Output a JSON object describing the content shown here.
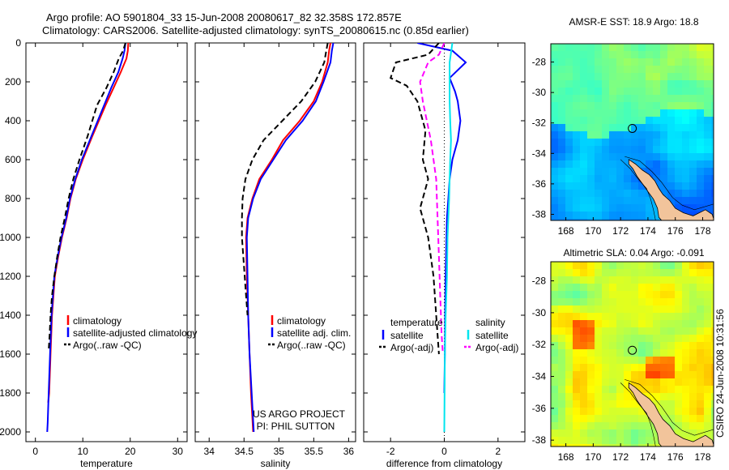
{
  "header": {
    "line1": "Argo profile: AO 5901804_33 15-Jun-2008 20080617_82 32.358S 172.857E",
    "line2": "Climatology: CARS2006. Satellite-adjusted climatology: synTS_20080615.nc (0.85d earlier)"
  },
  "side_text": "CSIRO 24-Jun-2008 10:31:56",
  "colors": {
    "climatology": "#ff0000",
    "satellite": "#0000ff",
    "argo": "#000000",
    "sat_diff_salinity": "#00e5ee",
    "argo_diff_salinity": "#ff00ff",
    "land": "#f2c49b",
    "marker": "#000000"
  },
  "chart_data": [
    {
      "type": "line",
      "panel": "temperature",
      "xlabel": "temperature",
      "ylabel": "",
      "xlim": [
        -2,
        32
      ],
      "ylim": [
        2050,
        0
      ],
      "xticks": [
        0,
        10,
        20,
        30
      ],
      "yticks": [
        0,
        200,
        400,
        600,
        800,
        1000,
        1200,
        1400,
        1600,
        1800,
        2000
      ],
      "legend": [
        "climatology",
        "satellite-adjusted climatology",
        "Argo(..raw -QC)"
      ],
      "legend_placement": "lower-right",
      "series": [
        {
          "name": "climatology",
          "color_key": "climatology",
          "style": "solid",
          "x": [
            19.6,
            19.5,
            19.2,
            18.0,
            16.5,
            14.8,
            12.0,
            10.0,
            8.5,
            7.4,
            6.6,
            5.6,
            4.8,
            4.1,
            3.5,
            3.2,
            2.9,
            2.7
          ],
          "y": [
            0,
            40,
            80,
            150,
            230,
            320,
            480,
            600,
            700,
            800,
            900,
            1000,
            1100,
            1200,
            1400,
            1600,
            1800,
            1850
          ]
        },
        {
          "name": "satellite-adjusted climatology",
          "color_key": "satellite",
          "style": "solid",
          "x": [
            19.0,
            18.8,
            18.4,
            17.5,
            16.0,
            14.5,
            11.8,
            9.8,
            8.4,
            7.3,
            6.5,
            5.5,
            4.7,
            4.0,
            3.4,
            3.1,
            2.8,
            2.6,
            2.5
          ],
          "y": [
            0,
            40,
            80,
            150,
            230,
            320,
            480,
            600,
            700,
            800,
            900,
            1000,
            1100,
            1200,
            1400,
            1600,
            1800,
            1950,
            2000
          ]
        },
        {
          "name": "Argo(..raw -QC)",
          "color_key": "argo",
          "style": "dashed",
          "x": [
            19.0,
            18.5,
            17.6,
            16.5,
            15.0,
            13.0,
            11.0,
            9.3,
            8.0,
            7.0,
            6.2,
            5.3,
            4.6,
            4.0,
            3.5,
            3.2,
            3.0,
            2.8
          ],
          "y": [
            0,
            40,
            80,
            150,
            230,
            320,
            480,
            600,
            700,
            800,
            900,
            1000,
            1100,
            1200,
            1300,
            1400,
            1500,
            1580
          ]
        }
      ]
    },
    {
      "type": "line",
      "panel": "salinity",
      "xlabel": "salinity",
      "ylabel": "",
      "xlim": [
        33.8,
        36.1
      ],
      "ylim": [
        2050,
        0
      ],
      "xticks": [
        34,
        34.5,
        35,
        35.5,
        36
      ],
      "legend": [
        "climatology",
        "satellite adj. clim.",
        "Argo(..raw -QC)"
      ],
      "legend_placement": "lower-right",
      "annotation": [
        "US ARGO PROJECT",
        "PI: PHIL SUTTON"
      ],
      "series": [
        {
          "name": "climatology",
          "color_key": "climatology",
          "style": "solid",
          "x": [
            35.74,
            35.72,
            35.7,
            35.62,
            35.5,
            35.3,
            35.06,
            34.9,
            34.72,
            34.62,
            34.55,
            34.53,
            34.54,
            34.56,
            34.58,
            34.6,
            34.63
          ],
          "y": [
            0,
            40,
            100,
            200,
            300,
            400,
            500,
            600,
            700,
            800,
            900,
            1000,
            1200,
            1400,
            1600,
            1800,
            2000
          ]
        },
        {
          "name": "satellite adj. clim.",
          "color_key": "satellite",
          "style": "solid",
          "x": [
            35.78,
            35.76,
            35.74,
            35.64,
            35.53,
            35.34,
            35.1,
            34.92,
            34.74,
            34.63,
            34.56,
            34.54,
            34.55,
            34.56,
            34.58,
            34.61,
            34.64
          ],
          "y": [
            0,
            40,
            100,
            200,
            300,
            400,
            500,
            600,
            700,
            800,
            900,
            1000,
            1200,
            1400,
            1600,
            1800,
            2000
          ]
        },
        {
          "name": "Argo(..raw -QC)",
          "color_key": "argo",
          "style": "dashed",
          "x": [
            35.7,
            35.68,
            35.65,
            35.52,
            35.32,
            35.05,
            34.78,
            34.62,
            34.52,
            34.48,
            34.47,
            34.47,
            34.49,
            34.51,
            34.53,
            34.55
          ],
          "y": [
            0,
            40,
            100,
            200,
            300,
            400,
            500,
            600,
            700,
            800,
            900,
            1000,
            1100,
            1200,
            1300,
            1400
          ]
        }
      ]
    },
    {
      "type": "line",
      "panel": "difference",
      "xlabel": "difference from climatology",
      "ylabel": "",
      "xlim": [
        -3,
        3
      ],
      "ylim": [
        2050,
        0
      ],
      "xticks": [
        -2,
        0,
        2
      ],
      "legend_groups": [
        {
          "title": "temperature",
          "items": [
            "satellite",
            "Argo(-adj)"
          ]
        },
        {
          "title": "salinity",
          "items": [
            "satellite",
            "Argo(-adj)"
          ]
        }
      ],
      "legend_placement": "lower-center",
      "series": [
        {
          "name": "temperature satellite",
          "color_key": "satellite",
          "style": "solid",
          "x": [
            -1.0,
            0.3,
            0.8,
            0.2,
            0.4,
            0.5,
            0.6,
            0.5,
            0.3,
            0.2,
            0.15,
            0.1,
            0.08,
            0.05,
            0.03,
            0.02,
            0.0
          ],
          "y": [
            0,
            40,
            100,
            180,
            250,
            300,
            400,
            500,
            600,
            700,
            800,
            900,
            1000,
            1200,
            1400,
            1600,
            1800
          ]
        },
        {
          "name": "salinity satellite",
          "color_key": "sat_diff_salinity",
          "style": "solid",
          "x": [
            0.3,
            0.25,
            0.2,
            0.2,
            0.2,
            0.22,
            0.25,
            0.22,
            0.2,
            0.18,
            0.15,
            0.12,
            0.1,
            0.05,
            0.02,
            0.0
          ],
          "y": [
            0,
            50,
            100,
            200,
            300,
            400,
            500,
            600,
            700,
            800,
            900,
            1000,
            1200,
            1400,
            1600,
            2000
          ]
        },
        {
          "name": "temperature Argo(-adj)",
          "color_key": "argo",
          "style": "dashed",
          "x": [
            -0.2,
            -0.6,
            -1.8,
            -2.0,
            -1.4,
            -1.0,
            -0.7,
            -0.8,
            -0.6,
            -0.9,
            -0.6,
            -0.5,
            -0.4,
            -0.3,
            -0.2
          ],
          "y": [
            0,
            60,
            100,
            180,
            220,
            300,
            450,
            600,
            700,
            850,
            1000,
            1100,
            1200,
            1400,
            1600
          ]
        },
        {
          "name": "salinity Argo(-adj)",
          "color_key": "argo_diff_salinity",
          "style": "dashed",
          "x": [
            0.0,
            -0.2,
            -0.6,
            -0.9,
            -0.8,
            -0.5,
            -0.3,
            -0.25,
            -0.2,
            -0.15,
            -0.1,
            -0.05
          ],
          "y": [
            0,
            60,
            100,
            200,
            300,
            500,
            700,
            900,
            1100,
            1300,
            1500,
            1600
          ]
        }
      ]
    },
    {
      "type": "heatmap",
      "panel": "sst-map",
      "title": "AMSR-E SST: 18.9 Argo: 18.8",
      "xlim": [
        166.9,
        178.8
      ],
      "ylim": [
        -38.4,
        -26.8
      ],
      "xticks": [
        168,
        170,
        172,
        174,
        176,
        178
      ],
      "yticks": [
        -28,
        -30,
        -32,
        -34,
        -36,
        -38
      ],
      "marker": {
        "lon": 172.857,
        "lat": -32.358
      },
      "palette": "jet",
      "description_values": {
        "range": [
          16,
          21
        ]
      }
    },
    {
      "type": "heatmap",
      "panel": "sla-map",
      "title": "Altimetric SLA: 0.04 Argo: -0.091",
      "xlim": [
        166.9,
        178.8
      ],
      "ylim": [
        -38.4,
        -26.8
      ],
      "xticks": [
        168,
        170,
        172,
        174,
        176,
        178
      ],
      "yticks": [
        -28,
        -30,
        -32,
        -34,
        -36,
        -38
      ],
      "marker": {
        "lon": 172.857,
        "lat": -32.358
      },
      "palette": "jet",
      "description_values": {
        "range": [
          -0.2,
          0.2
        ]
      }
    }
  ]
}
